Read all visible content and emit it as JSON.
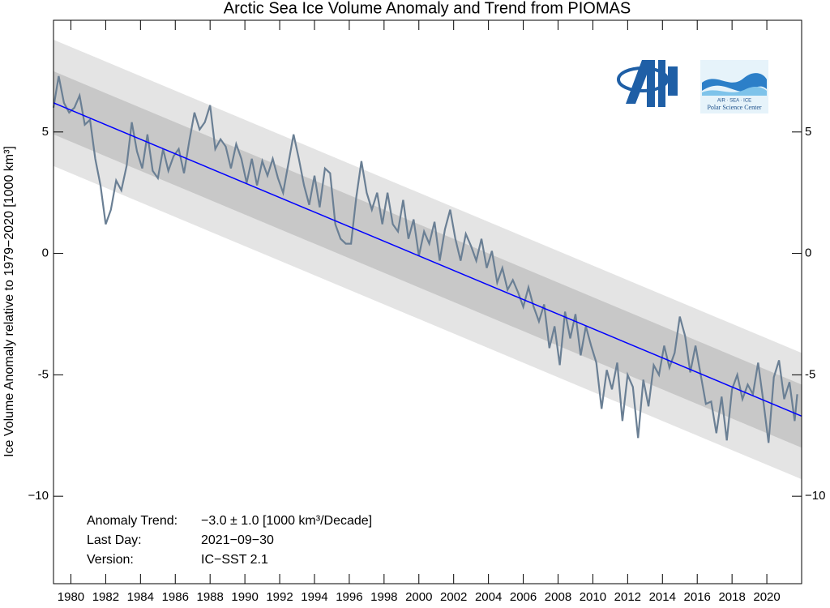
{
  "chart_data": {
    "type": "line",
    "title": "Arctic Sea Ice Volume Anomaly and Trend from PIOMAS",
    "y_label": "Ice Volume Anomaly relative to 1979−2020 [1000 km³]",
    "xlim": [
      1979,
      2022
    ],
    "ylim": [
      -13.6,
      9.6
    ],
    "xticks": [
      1980,
      1982,
      1984,
      1986,
      1988,
      1990,
      1992,
      1994,
      1996,
      1998,
      2000,
      2002,
      2004,
      2006,
      2008,
      2010,
      2012,
      2014,
      2016,
      2018,
      2020
    ],
    "yticks": [
      {
        "value": -10,
        "label": "−10"
      },
      {
        "value": -5,
        "label": "-5"
      },
      0,
      5
    ],
    "x": [
      1979.0,
      1979.3,
      1979.6,
      1979.9,
      1980.2,
      1980.5,
      1980.8,
      1981.1,
      1981.4,
      1981.7,
      1982.0,
      1982.3,
      1982.6,
      1982.9,
      1983.2,
      1983.5,
      1983.8,
      1984.1,
      1984.4,
      1984.7,
      1985.0,
      1985.3,
      1985.6,
      1985.9,
      1986.2,
      1986.5,
      1986.8,
      1987.1,
      1987.4,
      1987.7,
      1988.0,
      1988.3,
      1988.6,
      1988.9,
      1989.2,
      1989.5,
      1989.8,
      1990.1,
      1990.4,
      1990.7,
      1991.0,
      1991.3,
      1991.6,
      1991.9,
      1992.2,
      1992.5,
      1992.8,
      1993.1,
      1993.4,
      1993.7,
      1994.0,
      1994.3,
      1994.6,
      1994.9,
      1995.2,
      1995.5,
      1995.8,
      1996.1,
      1996.4,
      1996.7,
      1997.0,
      1997.3,
      1997.6,
      1997.9,
      1998.2,
      1998.5,
      1998.8,
      1999.1,
      1999.4,
      1999.7,
      2000.0,
      2000.3,
      2000.6,
      2000.9,
      2001.2,
      2001.5,
      2001.8,
      2002.1,
      2002.4,
      2002.7,
      2003.0,
      2003.3,
      2003.6,
      2003.9,
      2004.2,
      2004.5,
      2004.8,
      2005.1,
      2005.4,
      2005.7,
      2006.0,
      2006.3,
      2006.6,
      2006.9,
      2007.2,
      2007.5,
      2007.8,
      2008.1,
      2008.4,
      2008.7,
      2009.0,
      2009.3,
      2009.6,
      2009.9,
      2010.2,
      2010.5,
      2010.8,
      2011.1,
      2011.4,
      2011.7,
      2012.0,
      2012.3,
      2012.6,
      2012.9,
      2013.2,
      2013.5,
      2013.8,
      2014.1,
      2014.4,
      2014.7,
      2015.0,
      2015.3,
      2015.6,
      2015.9,
      2016.2,
      2016.5,
      2016.8,
      2017.1,
      2017.4,
      2017.7,
      2018.0,
      2018.3,
      2018.6,
      2018.9,
      2019.2,
      2019.5,
      2019.8,
      2020.1,
      2020.4,
      2020.7,
      2021.0,
      2021.3,
      2021.6,
      2021.75
    ],
    "series": [
      {
        "color": "#6a7f94",
        "values": [
          6.0,
          7.3,
          6.2,
          5.8,
          6.0,
          6.5,
          5.3,
          5.5,
          3.9,
          2.8,
          1.2,
          1.8,
          3.0,
          2.6,
          3.6,
          5.4,
          4.2,
          3.5,
          4.9,
          3.4,
          3.1,
          4.3,
          3.4,
          4.0,
          4.3,
          3.3,
          4.6,
          5.8,
          5.1,
          5.4,
          6.1,
          4.3,
          4.7,
          4.4,
          3.5,
          4.5,
          3.9,
          2.9,
          3.9,
          2.8,
          3.8,
          3.2,
          3.9,
          3.1,
          2.5,
          3.7,
          4.9,
          3.9,
          2.8,
          2.0,
          3.2,
          1.9,
          3.5,
          3.3,
          1.2,
          0.6,
          0.4,
          0.4,
          2.3,
          3.8,
          2.5,
          1.8,
          2.5,
          1.2,
          2.5,
          1.2,
          0.9,
          2.2,
          0.6,
          1.4,
          -0.1,
          0.9,
          0.4,
          1.3,
          -0.3,
          1.0,
          1.8,
          0.6,
          -0.3,
          0.8,
          0.3,
          -0.3,
          0.6,
          -0.6,
          0.1,
          -1.2,
          -0.6,
          -1.5,
          -1.1,
          -1.6,
          -2.2,
          -1.4,
          -2.2,
          -2.8,
          -2.1,
          -3.9,
          -3.0,
          -4.6,
          -2.4,
          -3.5,
          -2.5,
          -4.2,
          -3.0,
          -3.8,
          -4.5,
          -6.4,
          -4.8,
          -5.6,
          -4.5,
          -6.9,
          -5.0,
          -5.5,
          -7.6,
          -5.2,
          -6.3,
          -4.6,
          -5.0,
          -3.8,
          -4.7,
          -4.1,
          -2.6,
          -3.4,
          -4.9,
          -3.8,
          -5.0,
          -6.2,
          -6.1,
          -7.4,
          -5.9,
          -7.7,
          -5.6,
          -5.0,
          -6.0,
          -5.4,
          -5.8,
          -4.5,
          -6.1,
          -7.8,
          -5.1,
          -4.4,
          -6.0,
          -5.3,
          -6.9,
          -5.8
        ]
      }
    ],
    "trend": {
      "color": "#0000ff",
      "x": [
        1979,
        2022
      ],
      "values": [
        6.2,
        -6.7
      ]
    },
    "bands": [
      {
        "color": "#e4e4e4",
        "half_width": 2.6
      },
      {
        "color": "#c8c8c8",
        "half_width": 1.3
      }
    ],
    "annotations": [
      {
        "label": "Anomaly Trend:",
        "text": "−3.0 ± 1.0 [1000 km³/Decade]"
      },
      {
        "label": "Last Day:",
        "text": "2021−09−30"
      },
      {
        "label": "Version:",
        "text": "IC−SST 2.1"
      }
    ],
    "logo_texts": [
      "AIR  ·  SEA  ·  ICE",
      "Polar Science Center"
    ]
  }
}
